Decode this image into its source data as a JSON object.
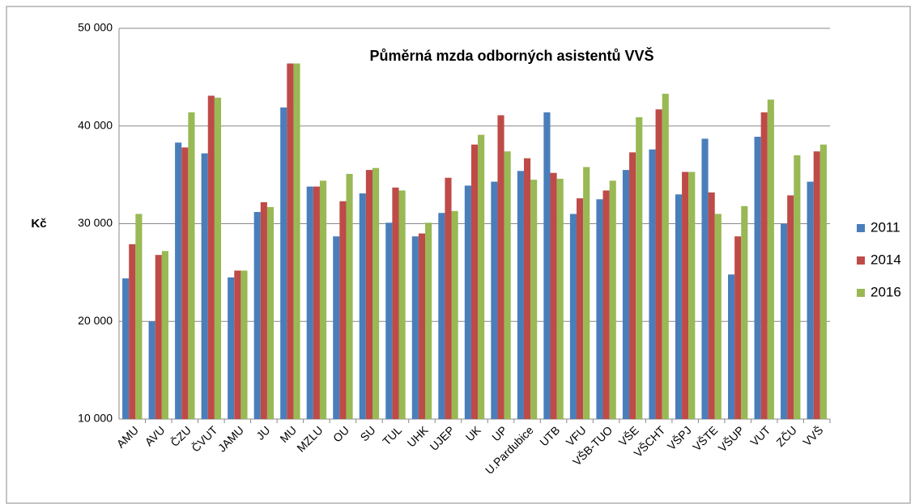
{
  "chart_data": {
    "type": "bar",
    "title": "Půměrná mzda odborných asistentů VVŠ",
    "y_label": "Kč",
    "categories": [
      "AMU",
      "AVU",
      "ČZU",
      "ČVUT",
      "JAMU",
      "JU",
      "MU",
      "MZLU",
      "OU",
      "SU",
      "TUL",
      "UHK",
      "UJEP",
      "UK",
      "UP",
      "U.Pardubice",
      "UTB",
      "VFU",
      "VŠB-TUO",
      "VŠE",
      "VŠCHT",
      "VŠPJ",
      "VŠTE",
      "VŠUP",
      "VUT",
      "ZČU",
      "VVŠ"
    ],
    "series": [
      {
        "name": "2011",
        "color": "#4a7ebb",
        "values": [
          24400,
          20000,
          38300,
          37200,
          24500,
          31200,
          41900,
          33800,
          28700,
          33100,
          30100,
          28700,
          31100,
          33900,
          34300,
          35400,
          41400,
          31000,
          32500,
          35500,
          37600,
          33000,
          38700,
          24800,
          38900,
          30000,
          34300
        ]
      },
      {
        "name": "2014",
        "color": "#be4b48",
        "values": [
          27900,
          26800,
          37800,
          43100,
          25200,
          32200,
          46400,
          33800,
          32300,
          35500,
          33700,
          29000,
          34700,
          38100,
          41100,
          36700,
          35200,
          32600,
          33400,
          37300,
          41700,
          35300,
          33200,
          28700,
          41400,
          32900,
          37400
        ]
      },
      {
        "name": "2016",
        "color": "#98b954",
        "values": [
          31000,
          27200,
          41400,
          42900,
          25200,
          31700,
          46400,
          34400,
          35100,
          35700,
          33400,
          30100,
          31300,
          39100,
          37400,
          34500,
          34600,
          35800,
          34400,
          40900,
          43300,
          35300,
          31000,
          31800,
          42700,
          37000,
          38100
        ]
      }
    ],
    "ylim": [
      10000,
      50000
    ],
    "yticks": [
      {
        "value": 10000,
        "label": "10 000"
      },
      {
        "value": 20000,
        "label": "20 000"
      },
      {
        "value": 30000,
        "label": "30 000"
      },
      {
        "value": 40000,
        "label": "40 000"
      },
      {
        "value": 50000,
        "label": "50 000"
      }
    ],
    "grid": true,
    "legend": "right"
  }
}
